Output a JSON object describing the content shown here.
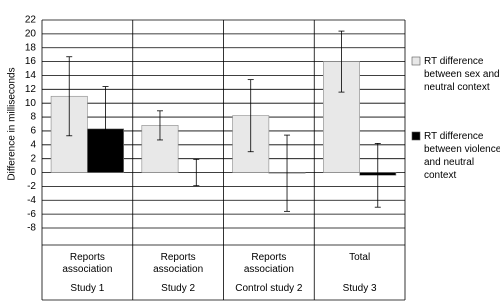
{
  "chart_data": {
    "type": "bar",
    "y_label": "Difference in milliseconds",
    "categories": [
      "Reports association",
      "Reports association",
      "Reports association",
      "Total"
    ],
    "groups": [
      "Study 1",
      "Study 2",
      "Control study 2",
      "Study 3"
    ],
    "series": [
      {
        "name": "RT difference between sex and neutral context",
        "color": "#e8e8e8",
        "values": [
          11,
          6.8,
          8.2,
          16
        ],
        "errors": [
          5.7,
          2.1,
          5.2,
          4.4
        ]
      },
      {
        "name": "RT difference between violence and neutral context",
        "color": "#000000",
        "values": [
          6.3,
          0,
          -0.1,
          -0.4
        ],
        "errors": [
          6.1,
          1.9,
          5.5,
          4.6
        ]
      }
    ],
    "ylim": [
      -8,
      22
    ],
    "yticks": [
      -8,
      -6,
      -4,
      -2,
      0,
      2,
      4,
      6,
      8,
      10,
      12,
      14,
      16,
      18,
      20,
      22
    ],
    "grid": true,
    "legend": "right"
  }
}
